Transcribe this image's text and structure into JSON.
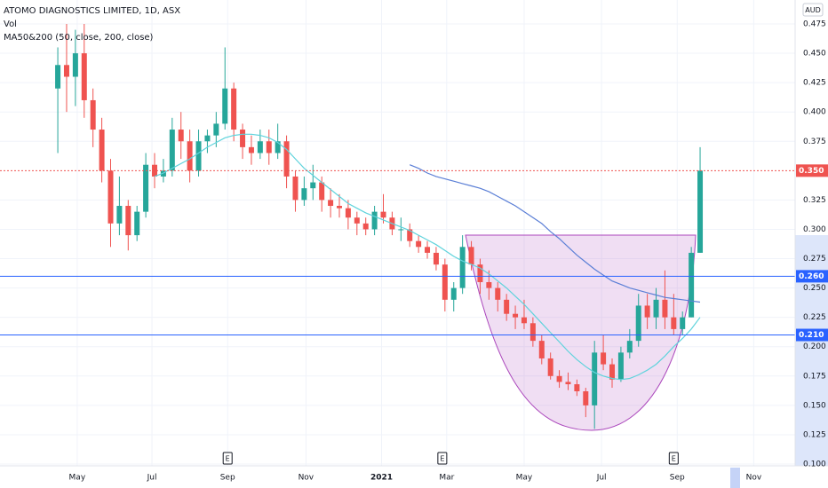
{
  "chart_data": {
    "type": "candlestick",
    "title": "ATOMO DIAGNOSTICS LIMITED, 1D, ASX",
    "legend_labels": [
      "Vol",
      "MA50&200 (50, close, 200, close)"
    ],
    "y_unit": "AUD",
    "up_color": "#26a69a",
    "down_color": "#ef5350",
    "grid": true,
    "ylim": [
      0.0985,
      0.4954
    ],
    "xlim": [
      -6.57,
      83.8
    ],
    "yticks": [
      {
        "value": 0.475,
        "label": "0.475"
      },
      {
        "value": 0.45,
        "label": "0.450"
      },
      {
        "value": 0.425,
        "label": "0.425"
      },
      {
        "value": 0.4,
        "label": "0.400"
      },
      {
        "value": 0.375,
        "label": "0.375"
      },
      {
        "value": 0.325,
        "label": "0.325"
      },
      {
        "value": 0.3,
        "label": "0.300"
      },
      {
        "value": 0.275,
        "label": "0.275"
      },
      {
        "value": 0.25,
        "label": "0.250"
      },
      {
        "value": 0.225,
        "label": "0.225"
      },
      {
        "value": 0.2,
        "label": "0.200"
      },
      {
        "value": 0.175,
        "label": "0.175"
      },
      {
        "value": 0.15,
        "label": "0.150"
      },
      {
        "value": 0.125,
        "label": "0.125"
      },
      {
        "value": 0.1,
        "label": "0.100"
      }
    ],
    "xticks": [
      {
        "value": 2.2,
        "label": "May"
      },
      {
        "value": 10.7,
        "label": "Jul"
      },
      {
        "value": 19.3,
        "label": "Sep"
      },
      {
        "value": 28.2,
        "label": "Nov"
      },
      {
        "value": 36.8,
        "label": "2021"
      },
      {
        "value": 44.2,
        "label": "Mar"
      },
      {
        "value": 53,
        "label": "May"
      },
      {
        "value": 61.8,
        "label": "Jul"
      },
      {
        "value": 70.4,
        "label": "Sep"
      },
      {
        "value": 79.1,
        "label": "Nov"
      }
    ],
    "ohlc": [
      [
        0.42,
        0.455,
        0.365,
        0.44
      ],
      [
        0.44,
        0.475,
        0.4,
        0.43
      ],
      [
        0.43,
        0.47,
        0.405,
        0.45
      ],
      [
        0.45,
        0.475,
        0.395,
        0.41
      ],
      [
        0.41,
        0.42,
        0.37,
        0.385
      ],
      [
        0.385,
        0.395,
        0.34,
        0.35
      ],
      [
        0.35,
        0.36,
        0.285,
        0.305
      ],
      [
        0.305,
        0.345,
        0.295,
        0.32
      ],
      [
        0.32,
        0.325,
        0.282,
        0.295
      ],
      [
        0.295,
        0.32,
        0.29,
        0.315
      ],
      [
        0.315,
        0.365,
        0.31,
        0.355
      ],
      [
        0.355,
        0.365,
        0.335,
        0.345
      ],
      [
        0.345,
        0.36,
        0.34,
        0.35
      ],
      [
        0.35,
        0.395,
        0.345,
        0.385
      ],
      [
        0.385,
        0.4,
        0.36,
        0.375
      ],
      [
        0.375,
        0.385,
        0.34,
        0.35
      ],
      [
        0.35,
        0.385,
        0.345,
        0.375
      ],
      [
        0.375,
        0.385,
        0.365,
        0.38
      ],
      [
        0.38,
        0.4,
        0.37,
        0.39
      ],
      [
        0.39,
        0.455,
        0.385,
        0.42
      ],
      [
        0.42,
        0.425,
        0.375,
        0.385
      ],
      [
        0.385,
        0.39,
        0.36,
        0.37
      ],
      [
        0.37,
        0.38,
        0.355,
        0.365
      ],
      [
        0.365,
        0.385,
        0.36,
        0.375
      ],
      [
        0.375,
        0.385,
        0.355,
        0.365
      ],
      [
        0.365,
        0.39,
        0.36,
        0.375
      ],
      [
        0.375,
        0.38,
        0.335,
        0.345
      ],
      [
        0.345,
        0.35,
        0.315,
        0.325
      ],
      [
        0.325,
        0.345,
        0.32,
        0.335
      ],
      [
        0.335,
        0.355,
        0.325,
        0.34
      ],
      [
        0.34,
        0.345,
        0.315,
        0.325
      ],
      [
        0.325,
        0.335,
        0.31,
        0.32
      ],
      [
        0.32,
        0.33,
        0.31,
        0.318
      ],
      [
        0.318,
        0.325,
        0.3,
        0.31
      ],
      [
        0.31,
        0.315,
        0.295,
        0.305
      ],
      [
        0.305,
        0.31,
        0.295,
        0.3
      ],
      [
        0.3,
        0.32,
        0.295,
        0.315
      ],
      [
        0.315,
        0.33,
        0.305,
        0.31
      ],
      [
        0.31,
        0.315,
        0.295,
        0.3
      ],
      [
        0.3,
        0.31,
        0.29,
        0.3
      ],
      [
        0.3,
        0.305,
        0.285,
        0.29
      ],
      [
        0.29,
        0.295,
        0.28,
        0.285
      ],
      [
        0.285,
        0.29,
        0.275,
        0.28
      ],
      [
        0.28,
        0.285,
        0.265,
        0.27
      ],
      [
        0.27,
        0.275,
        0.23,
        0.24
      ],
      [
        0.24,
        0.255,
        0.23,
        0.25
      ],
      [
        0.25,
        0.295,
        0.245,
        0.285
      ],
      [
        0.285,
        0.29,
        0.265,
        0.27
      ],
      [
        0.27,
        0.275,
        0.245,
        0.255
      ],
      [
        0.255,
        0.265,
        0.24,
        0.25
      ],
      [
        0.25,
        0.255,
        0.23,
        0.24
      ],
      [
        0.24,
        0.245,
        0.222,
        0.228
      ],
      [
        0.228,
        0.235,
        0.215,
        0.225
      ],
      [
        0.225,
        0.24,
        0.215,
        0.22
      ],
      [
        0.22,
        0.225,
        0.2,
        0.205
      ],
      [
        0.205,
        0.21,
        0.185,
        0.19
      ],
      [
        0.19,
        0.195,
        0.172,
        0.175
      ],
      [
        0.175,
        0.18,
        0.165,
        0.17
      ],
      [
        0.17,
        0.178,
        0.163,
        0.168
      ],
      [
        0.168,
        0.172,
        0.158,
        0.162
      ],
      [
        0.162,
        0.165,
        0.14,
        0.15
      ],
      [
        0.15,
        0.205,
        0.13,
        0.195
      ],
      [
        0.195,
        0.21,
        0.18,
        0.185
      ],
      [
        0.185,
        0.19,
        0.165,
        0.172
      ],
      [
        0.172,
        0.2,
        0.17,
        0.195
      ],
      [
        0.195,
        0.215,
        0.19,
        0.205
      ],
      [
        0.205,
        0.245,
        0.2,
        0.235
      ],
      [
        0.235,
        0.245,
        0.215,
        0.225
      ],
      [
        0.225,
        0.25,
        0.215,
        0.24
      ],
      [
        0.24,
        0.265,
        0.215,
        0.225
      ],
      [
        0.225,
        0.245,
        0.21,
        0.215
      ],
      [
        0.215,
        0.23,
        0.21,
        0.225
      ],
      [
        0.225,
        0.285,
        0.225,
        0.28
      ],
      [
        0.28,
        0.37,
        0.28,
        0.35
      ]
    ],
    "lines": [
      {
        "color": "#5fd3dc",
        "values": [
          null,
          null,
          null,
          null,
          null,
          null,
          null,
          null,
          null,
          null,
          null,
          0.345,
          0.348,
          0.352,
          0.356,
          0.36,
          0.365,
          0.37,
          0.374,
          0.378,
          0.38,
          0.381,
          0.381,
          0.38,
          0.378,
          0.374,
          0.368,
          0.36,
          0.352,
          0.346,
          0.34,
          0.334,
          0.328,
          0.322,
          0.318,
          0.314,
          0.311,
          0.308,
          0.305,
          0.302,
          0.299,
          0.295,
          0.291,
          0.287,
          0.282,
          0.277,
          0.273,
          0.27,
          0.267,
          0.262,
          0.256,
          0.25,
          0.243,
          0.236,
          0.228,
          0.22,
          0.212,
          0.204,
          0.196,
          0.189,
          0.183,
          0.178,
          0.175,
          0.173,
          0.172,
          0.173,
          0.176,
          0.18,
          0.185,
          0.192,
          0.2,
          0.207,
          0.215,
          0.225
        ]
      },
      {
        "color": "#5b7fd6",
        "values": [
          null,
          null,
          null,
          null,
          null,
          null,
          null,
          null,
          null,
          null,
          null,
          null,
          null,
          null,
          null,
          null,
          null,
          null,
          null,
          null,
          null,
          null,
          null,
          null,
          null,
          null,
          null,
          null,
          null,
          null,
          null,
          null,
          null,
          null,
          null,
          null,
          null,
          null,
          null,
          null,
          0.355,
          0.352,
          0.348,
          0.345,
          0.343,
          0.341,
          0.339,
          0.337,
          0.335,
          0.332,
          0.328,
          0.324,
          0.32,
          0.315,
          0.31,
          0.305,
          0.298,
          0.292,
          0.285,
          0.278,
          0.272,
          0.266,
          0.261,
          0.256,
          0.253,
          0.25,
          0.248,
          0.246,
          0.244,
          0.242,
          0.241,
          0.24,
          0.239,
          0.238
        ]
      }
    ],
    "hlines": [
      {
        "value": 0.26,
        "label": "0.260",
        "color": "#2962ff"
      },
      {
        "value": 0.21,
        "label": "0.210",
        "color": "#2962ff"
      }
    ],
    "last_price": {
      "value": 0.35,
      "label": "0.350",
      "color": "#ef5350"
    },
    "events": [
      {
        "x": 19.3,
        "label": "E"
      },
      {
        "x": 43.7,
        "label": "E"
      },
      {
        "x": 70,
        "label": "E"
      }
    ]
  }
}
